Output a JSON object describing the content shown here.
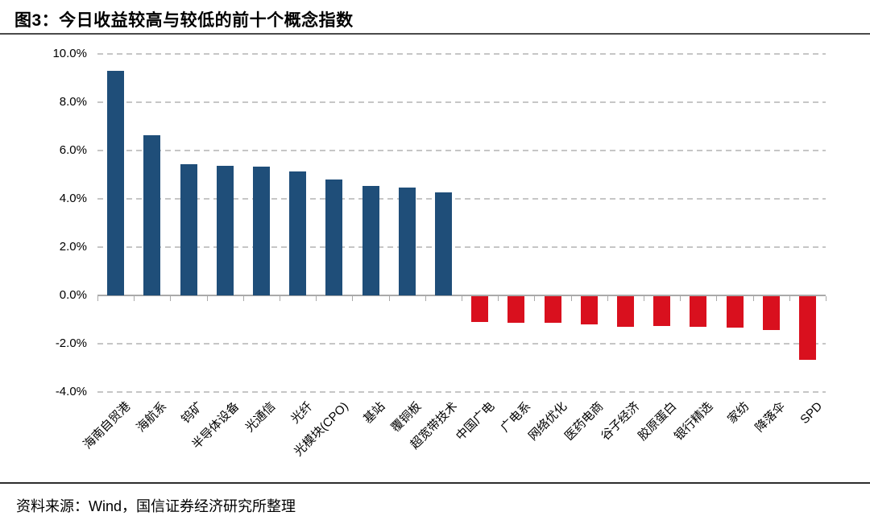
{
  "page": {
    "title": "图3：今日收益较高与较低的前十个概念指数",
    "source": "资料来源：Wind，国信证券经济研究所整理"
  },
  "colors": {
    "positive_bar": "#1f4e79",
    "negative_bar": "#d9101e",
    "gridline": "#c6c6c6",
    "zero_axis": "#a9a9a9",
    "text": "#000000"
  },
  "chart_data": {
    "type": "bar",
    "title": "图3：今日收益较高与较低的前十个概念指数",
    "categories": [
      "海南自贸港",
      "海航系",
      "钨矿",
      "半导体设备",
      "光通信",
      "光纤",
      "光模块(CPO)",
      "基站",
      "覆铜板",
      "超宽带技术",
      "中国广电",
      "广电系",
      "网络优化",
      "医药电商",
      "谷子经济",
      "胶原蛋白",
      "银行精选",
      "家纺",
      "降落伞",
      "SPD"
    ],
    "values": [
      9.3,
      6.63,
      5.45,
      5.36,
      5.33,
      5.12,
      4.81,
      4.55,
      4.46,
      4.26,
      -1.06,
      -1.1,
      -1.1,
      -1.16,
      -1.27,
      -1.23,
      -1.27,
      -1.29,
      -1.39,
      -2.62
    ],
    "unit": "%",
    "xlabel": "",
    "ylabel": "",
    "ylim": [
      -4,
      10
    ],
    "ytick_labels": [
      "10.0%",
      "8.0%",
      "6.0%",
      "4.0%",
      "2.0%",
      "0.0%",
      "-2.0%",
      "-4.0%"
    ],
    "grid": "horizontal-dashed",
    "legend": "none",
    "positive_color": "#1f4e79",
    "negative_color": "#d9101e"
  }
}
